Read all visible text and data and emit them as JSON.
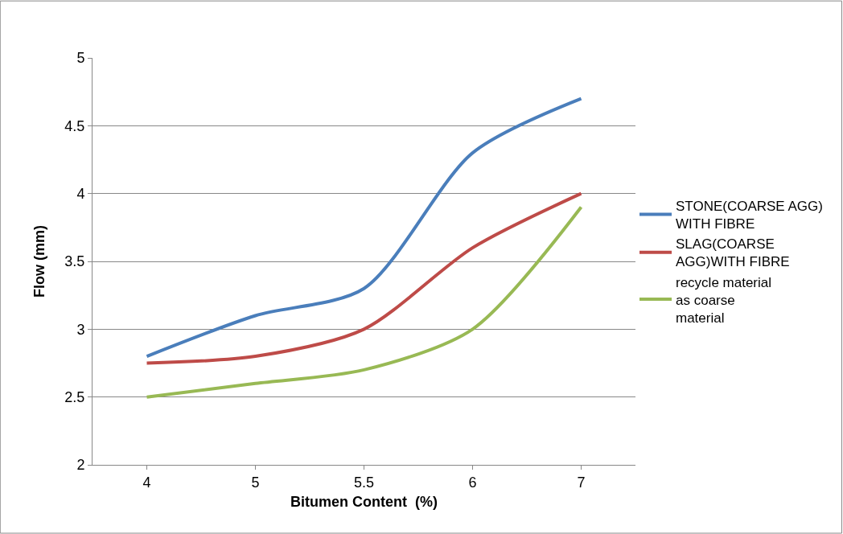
{
  "chart_data": {
    "type": "line",
    "xlabel": "Bitumen Content  (%)",
    "ylabel": "Flow (mm)",
    "categories": [
      "4",
      "5",
      "5.5",
      "6",
      "7"
    ],
    "series": [
      {
        "name": "STONE(COARSE AGG) WITH FIBRE",
        "color": "#4a7ebb",
        "values": [
          2.8,
          3.1,
          3.3,
          4.3,
          4.7
        ]
      },
      {
        "name": "SLAG(COARSE AGG)WITH FIBRE",
        "color": "#be4b48",
        "values": [
          2.75,
          2.8,
          3.0,
          3.6,
          4.0
        ]
      },
      {
        "name": "recycle material as coarse material",
        "color": "#98b954",
        "values": [
          2.5,
          2.6,
          2.7,
          3.0,
          3.9
        ]
      }
    ],
    "ylim": [
      2,
      5
    ],
    "yticks": [
      2,
      2.5,
      3,
      3.5,
      4,
      4.5,
      5
    ],
    "grid": "y",
    "legend": "right",
    "marker": "none",
    "line_style": "solid"
  }
}
